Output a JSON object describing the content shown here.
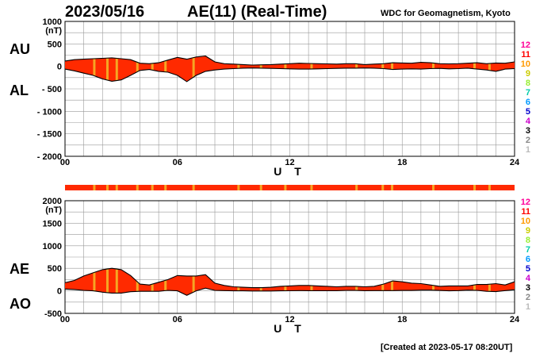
{
  "header": {
    "date": "2023/05/16",
    "title": "AE(11) (Real-Time)",
    "source": "WDC for Geomagnetism, Kyoto",
    "created": "[Created at 2023-05-17 08:20UT]"
  },
  "colors": {
    "fill": "#ff2a00",
    "highlight": "#f5a623",
    "grid": "#999999",
    "kp_levels": [
      "#ff0099",
      "#ff0000",
      "#ff9900",
      "#cccc00",
      "#99ee33",
      "#00ccaa",
      "#0099ff",
      "#0000cc",
      "#cc00cc",
      "#000000",
      "#888888",
      "#bbbbbb"
    ]
  },
  "chart_data": [
    {
      "type": "area",
      "title": "AU / AL",
      "labels": {
        "upper": "AU",
        "lower": "AL"
      },
      "unit": "(nT)",
      "xlabel": "U T",
      "xlim": [
        0,
        24
      ],
      "xticks": [
        "00",
        "06",
        "12",
        "18",
        "24"
      ],
      "ylim": [
        -2000,
        1000
      ],
      "yticks": [
        "1000",
        "500",
        "0",
        "- 500",
        "- 1000",
        "- 1500",
        "- 2000"
      ],
      "hours": [
        0,
        0.5,
        1,
        1.5,
        2,
        2.5,
        3,
        3.5,
        4,
        4.5,
        5,
        5.5,
        6,
        6.5,
        7,
        7.5,
        8,
        8.5,
        9,
        9.5,
        10,
        10.5,
        11,
        11.5,
        12,
        12.5,
        13,
        13.5,
        14,
        14.5,
        15,
        15.5,
        16,
        16.5,
        17,
        17.5,
        18,
        18.5,
        19,
        19.5,
        20,
        20.5,
        21,
        21.5,
        22,
        22.5,
        23,
        23.5,
        24
      ],
      "series": [
        {
          "name": "AU",
          "values": [
            120,
            150,
            160,
            170,
            180,
            190,
            170,
            150,
            70,
            60,
            80,
            140,
            200,
            160,
            210,
            230,
            100,
            60,
            50,
            40,
            30,
            35,
            40,
            50,
            60,
            70,
            65,
            60,
            55,
            50,
            60,
            60,
            40,
            50,
            60,
            80,
            75,
            70,
            90,
            80,
            60,
            55,
            60,
            70,
            80,
            60,
            75,
            70,
            100
          ]
        },
        {
          "name": "AL",
          "values": [
            -60,
            -100,
            -150,
            -200,
            -280,
            -330,
            -300,
            -200,
            -90,
            -70,
            -110,
            -130,
            -200,
            -340,
            -200,
            -110,
            -80,
            -60,
            -50,
            -40,
            -35,
            -40,
            -45,
            -50,
            -55,
            -60,
            -60,
            -55,
            -50,
            -45,
            -40,
            -40,
            -35,
            -40,
            -50,
            -70,
            -60,
            -55,
            -60,
            -50,
            -45,
            -55,
            -50,
            -40,
            -60,
            -80,
            -110,
            -60,
            -50
          ]
        }
      ]
    },
    {
      "type": "area",
      "title": "AE / AO",
      "labels": {
        "upper": "AE",
        "lower": "AO"
      },
      "unit": "(nT)",
      "xlabel": "U T",
      "xlim": [
        0,
        24
      ],
      "xticks": [
        "00",
        "06",
        "12",
        "18",
        "24"
      ],
      "ylim": [
        -500,
        2000
      ],
      "yticks": [
        "2000",
        "1500",
        "1000",
        "500",
        "0",
        "-500"
      ],
      "hours": [
        0,
        0.5,
        1,
        1.5,
        2,
        2.5,
        3,
        3.5,
        4,
        4.5,
        5,
        5.5,
        6,
        6.5,
        7,
        7.5,
        8,
        8.5,
        9,
        9.5,
        10,
        10.5,
        11,
        11.5,
        12,
        12.5,
        13,
        13.5,
        14,
        14.5,
        15,
        15.5,
        16,
        16.5,
        17,
        17.5,
        18,
        18.5,
        19,
        19.5,
        20,
        20.5,
        21,
        21.5,
        22,
        22.5,
        23,
        23.5,
        24
      ],
      "series": [
        {
          "name": "AE",
          "values": [
            180,
            230,
            330,
            400,
            470,
            500,
            470,
            340,
            150,
            130,
            190,
            250,
            340,
            330,
            330,
            360,
            170,
            120,
            90,
            80,
            70,
            70,
            80,
            100,
            110,
            120,
            120,
            110,
            100,
            90,
            100,
            100,
            90,
            100,
            150,
            220,
            200,
            170,
            160,
            130,
            100,
            110,
            110,
            110,
            140,
            140,
            160,
            130,
            200
          ]
        },
        {
          "name": "AO",
          "values": [
            40,
            30,
            10,
            0,
            -30,
            -50,
            -50,
            -20,
            -10,
            -10,
            -10,
            10,
            0,
            -100,
            0,
            60,
            10,
            5,
            0,
            0,
            -3,
            -3,
            -3,
            0,
            2,
            5,
            3,
            3,
            3,
            3,
            10,
            10,
            3,
            5,
            5,
            5,
            8,
            8,
            15,
            15,
            8,
            0,
            5,
            15,
            10,
            -10,
            -18,
            5,
            25
          ]
        }
      ]
    }
  ],
  "kp_scale": [
    "12",
    "11",
    "10",
    "9",
    "8",
    "7",
    "6",
    "5",
    "4",
    "3",
    "2",
    "1"
  ]
}
